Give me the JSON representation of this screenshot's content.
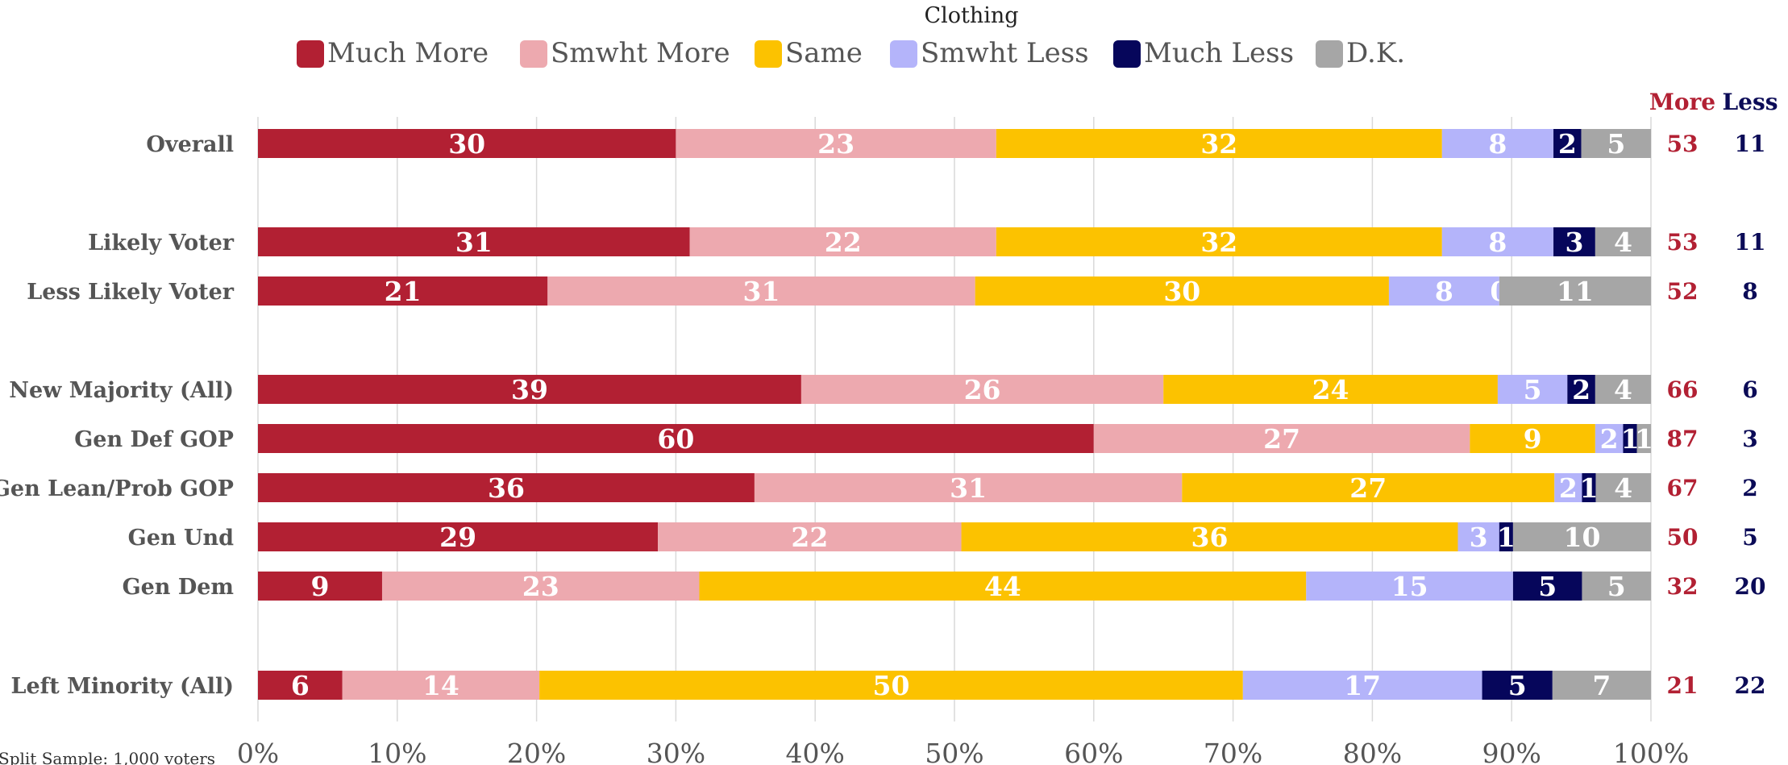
{
  "chart_data": {
    "type": "bar",
    "orientation": "horizontal",
    "stacked": "percent",
    "title": "Clothing",
    "categories": [
      "Overall",
      "Likely Voter",
      "Less Likely Voter",
      "New Majority (All)",
      "Gen Def GOP",
      "Gen Lean/Prob GOP",
      "Gen Und",
      "Gen Dem",
      "Left Minority (All)"
    ],
    "series": [
      {
        "name": "Much More",
        "color": "#b22033",
        "values": [
          30,
          31,
          21,
          39,
          60,
          36,
          29,
          9,
          6
        ]
      },
      {
        "name": "Smwht More",
        "color": "#eda9af",
        "values": [
          23,
          22,
          31,
          26,
          27,
          31,
          22,
          23,
          14
        ]
      },
      {
        "name": "Same",
        "color": "#fcc200",
        "values": [
          32,
          32,
          30,
          24,
          9,
          27,
          36,
          44,
          50
        ]
      },
      {
        "name": "Smwht Less",
        "color": "#b4b4fa",
        "values": [
          8,
          8,
          8,
          5,
          2,
          2,
          3,
          15,
          17
        ]
      },
      {
        "name": "Much Less",
        "color": "#06065b",
        "values": [
          2,
          3,
          0,
          2,
          1,
          1,
          1,
          5,
          5
        ]
      },
      {
        "name": "D.K.",
        "color": "#a6a6a6",
        "values": [
          5,
          4,
          11,
          4,
          1,
          4,
          10,
          5,
          7
        ]
      }
    ],
    "summary": {
      "more_label": "More",
      "less_label": "Less",
      "more": [
        53,
        53,
        52,
        66,
        87,
        67,
        50,
        32,
        21
      ],
      "less": [
        11,
        11,
        8,
        6,
        3,
        2,
        5,
        20,
        22
      ]
    },
    "xlim": [
      0,
      100
    ],
    "x_ticks": [
      "0%",
      "10%",
      "20%",
      "30%",
      "40%",
      "50%",
      "60%",
      "70%",
      "80%",
      "90%",
      "100%"
    ],
    "grid": true,
    "legend_position": "top-center",
    "colors": {
      "more": "#b22033",
      "less": "#0b0b57"
    }
  },
  "footnote": "Split Sample: 1,000 voters"
}
